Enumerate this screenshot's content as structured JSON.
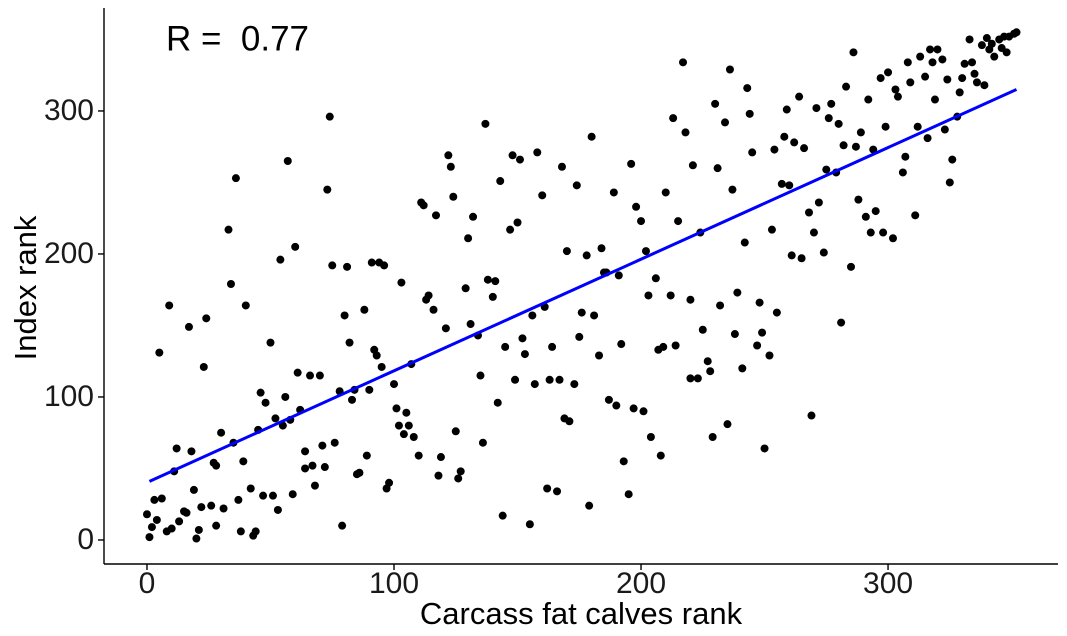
{
  "chart_data": {
    "type": "scatter",
    "x_label": "Carcass fat calves rank",
    "y_label": "Index rank",
    "annotation": "R =  0.77",
    "color": "#000000",
    "x": [
      0,
      1,
      2,
      3,
      4,
      5,
      6,
      8,
      9,
      10,
      11,
      12,
      13,
      15,
      16,
      17,
      18,
      19,
      20,
      21,
      22,
      23,
      24,
      26,
      27,
      28,
      28,
      30,
      31,
      33,
      34,
      35,
      36,
      37,
      38,
      39,
      40,
      42,
      43,
      44,
      45,
      46,
      47,
      48,
      50,
      51,
      52,
      53,
      54,
      55,
      56,
      57,
      58,
      59,
      60,
      61,
      62,
      64,
      64,
      66,
      67,
      68,
      70,
      71,
      72,
      73,
      74,
      75,
      76,
      78,
      79,
      80,
      81,
      82,
      83,
      84,
      85,
      86,
      88,
      89,
      90,
      91,
      92,
      93,
      94,
      95,
      96,
      97,
      98,
      100,
      101,
      102,
      103,
      104,
      105,
      106,
      107,
      108,
      110,
      111,
      112,
      113,
      114,
      116,
      117,
      118,
      119,
      121,
      122,
      123,
      124,
      125,
      126,
      127,
      129,
      130,
      131,
      132,
      134,
      135,
      136,
      137,
      138,
      140,
      141,
      142,
      143,
      144,
      145,
      147,
      148,
      149,
      150,
      151,
      152,
      153,
      155,
      156,
      157,
      158,
      160,
      161,
      162,
      163,
      164,
      166,
      167,
      168,
      169,
      170,
      171,
      173,
      174,
      175,
      176,
      178,
      179,
      180,
      181,
      183,
      184,
      185,
      186,
      187,
      189,
      190,
      191,
      192,
      193,
      195,
      196,
      197,
      198,
      200,
      201,
      202,
      203,
      204,
      206,
      207,
      208,
      209,
      210,
      212,
      213,
      214,
      215,
      217,
      218,
      220,
      220,
      221,
      223,
      224,
      225,
      227,
      228,
      229,
      230,
      231,
      232,
      234,
      235,
      236,
      237,
      238,
      239,
      241,
      242,
      243,
      244,
      245,
      247,
      248,
      249,
      250,
      252,
      253,
      254,
      255,
      257,
      258,
      259,
      260,
      261,
      262,
      264,
      265,
      266,
      268,
      269,
      270,
      271,
      272,
      274,
      275,
      276,
      277,
      279,
      280,
      281,
      282,
      283,
      285,
      286,
      287,
      288,
      289,
      291,
      292,
      293,
      294,
      295,
      297,
      298,
      299,
      300,
      302,
      303,
      304,
      306,
      307,
      308,
      309,
      311,
      312,
      313,
      315,
      316,
      317,
      318,
      319,
      320,
      322,
      323,
      324,
      325,
      326,
      328,
      329,
      330,
      331,
      333,
      334,
      335,
      336,
      338,
      339,
      340,
      341,
      342,
      343,
      345,
      346,
      347,
      348,
      349,
      351,
      352
    ],
    "values": [
      18,
      2,
      9,
      28,
      14,
      131,
      29,
      6,
      164,
      8,
      48,
      64,
      13,
      20,
      19,
      149,
      62,
      35,
      1,
      7,
      23,
      121,
      155,
      24,
      54,
      10,
      52,
      75,
      22,
      217,
      179,
      68,
      253,
      28,
      6,
      55,
      164,
      36,
      3,
      6,
      77,
      103,
      31,
      96,
      138,
      31,
      85,
      21,
      196,
      80,
      100,
      265,
      84,
      32,
      205,
      117,
      91,
      62,
      50,
      115,
      52,
      38,
      115,
      66,
      51,
      245,
      296,
      192,
      68,
      104,
      10,
      157,
      191,
      138,
      98,
      105,
      46,
      47,
      161,
      59,
      105,
      194,
      133,
      129,
      194,
      121,
      192,
      36,
      40,
      109,
      92,
      80,
      180,
      74,
      89,
      80,
      123,
      72,
      59,
      236,
      234,
      168,
      171,
      161,
      227,
      45,
      58,
      148,
      269,
      261,
      240,
      76,
      43,
      48,
      176,
      211,
      151,
      226,
      143,
      115,
      68,
      291,
      182,
      170,
      181,
      96,
      251,
      17,
      135,
      217,
      269,
      112,
      222,
      266,
      141,
      130,
      11,
      157,
      109,
      271,
      241,
      163,
      36,
      112,
      135,
      34,
      112,
      261,
      85,
      202,
      83,
      109,
      248,
      142,
      159,
      199,
      24,
      282,
      157,
      129,
      204,
      187,
      187,
      98,
      243,
      94,
      185,
      137,
      55,
      32,
      263,
      92,
      233,
      223,
      90,
      202,
      171,
      72,
      183,
      133,
      59,
      135,
      243,
      171,
      295,
      136,
      223,
      334,
      285,
      113,
      168,
      262,
      113,
      215,
      147,
      125,
      118,
      72,
      305,
      260,
      164,
      292,
      81,
      329,
      245,
      144,
      173,
      120,
      208,
      316,
      298,
      271,
      136,
      166,
      145,
      64,
      129,
      217,
      273,
      159,
      249,
      282,
      301,
      248,
      199,
      278,
      310,
      197,
      274,
      229,
      87,
      215,
      302,
      236,
      201,
      259,
      295,
      305,
      257,
      291,
      152,
      276,
      317,
      191,
      341,
      275,
      238,
      285,
      226,
      308,
      215,
      273,
      230,
      323,
      215,
      289,
      327,
      211,
      315,
      310,
      257,
      268,
      334,
      320,
      227,
      289,
      338,
      324,
      281,
      343,
      334,
      308,
      343,
      336,
      287,
      322,
      250,
      266,
      296,
      313,
      323,
      333,
      350,
      334,
      326,
      320,
      346,
      318,
      351,
      343,
      347,
      338,
      350,
      344,
      352,
      341,
      352,
      354,
      355
    ],
    "fit": {
      "x": [
        1,
        352
      ],
      "values": [
        41,
        315
      ],
      "color": "#0000ff"
    },
    "xlim": [
      -17.4,
      368.8
    ],
    "ylim": [
      -16.8,
      372
    ],
    "xticks": [
      0,
      100,
      200,
      300
    ],
    "yticks": [
      0,
      100,
      200,
      300
    ]
  }
}
